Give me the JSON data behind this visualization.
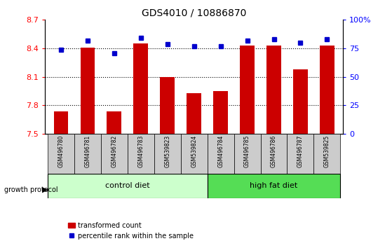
{
  "title": "GDS4010 / 10886870",
  "samples": [
    "GSM496780",
    "GSM496781",
    "GSM496782",
    "GSM496783",
    "GSM539823",
    "GSM539824",
    "GSM496784",
    "GSM496785",
    "GSM496786",
    "GSM496787",
    "GSM539825"
  ],
  "red_values": [
    7.74,
    8.41,
    7.74,
    8.45,
    8.1,
    7.93,
    7.95,
    8.43,
    8.43,
    8.18,
    8.43
  ],
  "blue_values": [
    74,
    82,
    71,
    84,
    79,
    77,
    77,
    82,
    83,
    80,
    83
  ],
  "ylim_left": [
    7.5,
    8.7
  ],
  "ylim_right": [
    0,
    100
  ],
  "yticks_left": [
    7.5,
    7.8,
    8.1,
    8.4,
    8.7
  ],
  "yticks_right": [
    0,
    25,
    50,
    75,
    100
  ],
  "ytick_labels_left": [
    "7.5",
    "7.8",
    "8.1",
    "8.4",
    "8.7"
  ],
  "ytick_labels_right": [
    "0",
    "25",
    "50",
    "75",
    "100%"
  ],
  "n_control": 6,
  "n_highfat": 5,
  "control_diet_label": "control diet",
  "high_fat_diet_label": "high fat diet",
  "growth_protocol_label": "growth protocol",
  "legend_red": "transformed count",
  "legend_blue": "percentile rank within the sample",
  "bar_color": "#cc0000",
  "dot_color": "#0000cc",
  "control_bg": "#ccffcc",
  "highfat_bg": "#55dd55",
  "sample_bg": "#cccccc",
  "bar_width": 0.55
}
